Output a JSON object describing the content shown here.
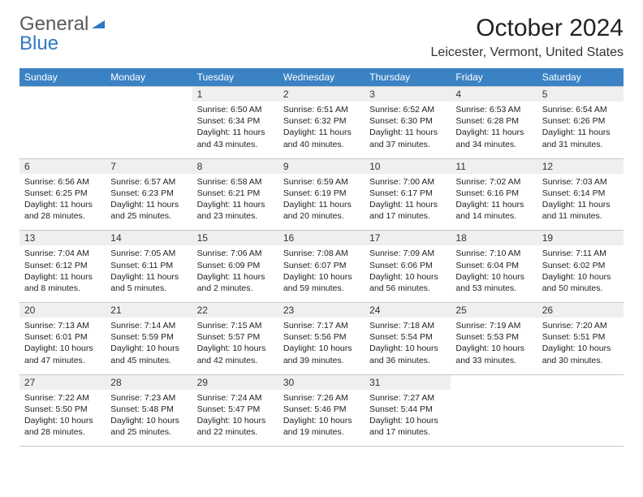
{
  "logo": {
    "part1": "General",
    "part2": "Blue"
  },
  "title": "October 2024",
  "location": "Leicester, Vermont, United States",
  "colors": {
    "header_bg": "#3a82c4",
    "header_fg": "#ffffff",
    "daynum_bg": "#efefef",
    "border": "#c8c8c8",
    "logo_blue": "#2e78c2",
    "logo_gray": "#5a5a5a"
  },
  "daysOfWeek": [
    "Sunday",
    "Monday",
    "Tuesday",
    "Wednesday",
    "Thursday",
    "Friday",
    "Saturday"
  ],
  "weeks": [
    [
      null,
      null,
      {
        "n": "1",
        "sr": "Sunrise: 6:50 AM",
        "ss": "Sunset: 6:34 PM",
        "dl": "Daylight: 11 hours and 43 minutes."
      },
      {
        "n": "2",
        "sr": "Sunrise: 6:51 AM",
        "ss": "Sunset: 6:32 PM",
        "dl": "Daylight: 11 hours and 40 minutes."
      },
      {
        "n": "3",
        "sr": "Sunrise: 6:52 AM",
        "ss": "Sunset: 6:30 PM",
        "dl": "Daylight: 11 hours and 37 minutes."
      },
      {
        "n": "4",
        "sr": "Sunrise: 6:53 AM",
        "ss": "Sunset: 6:28 PM",
        "dl": "Daylight: 11 hours and 34 minutes."
      },
      {
        "n": "5",
        "sr": "Sunrise: 6:54 AM",
        "ss": "Sunset: 6:26 PM",
        "dl": "Daylight: 11 hours and 31 minutes."
      }
    ],
    [
      {
        "n": "6",
        "sr": "Sunrise: 6:56 AM",
        "ss": "Sunset: 6:25 PM",
        "dl": "Daylight: 11 hours and 28 minutes."
      },
      {
        "n": "7",
        "sr": "Sunrise: 6:57 AM",
        "ss": "Sunset: 6:23 PM",
        "dl": "Daylight: 11 hours and 25 minutes."
      },
      {
        "n": "8",
        "sr": "Sunrise: 6:58 AM",
        "ss": "Sunset: 6:21 PM",
        "dl": "Daylight: 11 hours and 23 minutes."
      },
      {
        "n": "9",
        "sr": "Sunrise: 6:59 AM",
        "ss": "Sunset: 6:19 PM",
        "dl": "Daylight: 11 hours and 20 minutes."
      },
      {
        "n": "10",
        "sr": "Sunrise: 7:00 AM",
        "ss": "Sunset: 6:17 PM",
        "dl": "Daylight: 11 hours and 17 minutes."
      },
      {
        "n": "11",
        "sr": "Sunrise: 7:02 AM",
        "ss": "Sunset: 6:16 PM",
        "dl": "Daylight: 11 hours and 14 minutes."
      },
      {
        "n": "12",
        "sr": "Sunrise: 7:03 AM",
        "ss": "Sunset: 6:14 PM",
        "dl": "Daylight: 11 hours and 11 minutes."
      }
    ],
    [
      {
        "n": "13",
        "sr": "Sunrise: 7:04 AM",
        "ss": "Sunset: 6:12 PM",
        "dl": "Daylight: 11 hours and 8 minutes."
      },
      {
        "n": "14",
        "sr": "Sunrise: 7:05 AM",
        "ss": "Sunset: 6:11 PM",
        "dl": "Daylight: 11 hours and 5 minutes."
      },
      {
        "n": "15",
        "sr": "Sunrise: 7:06 AM",
        "ss": "Sunset: 6:09 PM",
        "dl": "Daylight: 11 hours and 2 minutes."
      },
      {
        "n": "16",
        "sr": "Sunrise: 7:08 AM",
        "ss": "Sunset: 6:07 PM",
        "dl": "Daylight: 10 hours and 59 minutes."
      },
      {
        "n": "17",
        "sr": "Sunrise: 7:09 AM",
        "ss": "Sunset: 6:06 PM",
        "dl": "Daylight: 10 hours and 56 minutes."
      },
      {
        "n": "18",
        "sr": "Sunrise: 7:10 AM",
        "ss": "Sunset: 6:04 PM",
        "dl": "Daylight: 10 hours and 53 minutes."
      },
      {
        "n": "19",
        "sr": "Sunrise: 7:11 AM",
        "ss": "Sunset: 6:02 PM",
        "dl": "Daylight: 10 hours and 50 minutes."
      }
    ],
    [
      {
        "n": "20",
        "sr": "Sunrise: 7:13 AM",
        "ss": "Sunset: 6:01 PM",
        "dl": "Daylight: 10 hours and 47 minutes."
      },
      {
        "n": "21",
        "sr": "Sunrise: 7:14 AM",
        "ss": "Sunset: 5:59 PM",
        "dl": "Daylight: 10 hours and 45 minutes."
      },
      {
        "n": "22",
        "sr": "Sunrise: 7:15 AM",
        "ss": "Sunset: 5:57 PM",
        "dl": "Daylight: 10 hours and 42 minutes."
      },
      {
        "n": "23",
        "sr": "Sunrise: 7:17 AM",
        "ss": "Sunset: 5:56 PM",
        "dl": "Daylight: 10 hours and 39 minutes."
      },
      {
        "n": "24",
        "sr": "Sunrise: 7:18 AM",
        "ss": "Sunset: 5:54 PM",
        "dl": "Daylight: 10 hours and 36 minutes."
      },
      {
        "n": "25",
        "sr": "Sunrise: 7:19 AM",
        "ss": "Sunset: 5:53 PM",
        "dl": "Daylight: 10 hours and 33 minutes."
      },
      {
        "n": "26",
        "sr": "Sunrise: 7:20 AM",
        "ss": "Sunset: 5:51 PM",
        "dl": "Daylight: 10 hours and 30 minutes."
      }
    ],
    [
      {
        "n": "27",
        "sr": "Sunrise: 7:22 AM",
        "ss": "Sunset: 5:50 PM",
        "dl": "Daylight: 10 hours and 28 minutes."
      },
      {
        "n": "28",
        "sr": "Sunrise: 7:23 AM",
        "ss": "Sunset: 5:48 PM",
        "dl": "Daylight: 10 hours and 25 minutes."
      },
      {
        "n": "29",
        "sr": "Sunrise: 7:24 AM",
        "ss": "Sunset: 5:47 PM",
        "dl": "Daylight: 10 hours and 22 minutes."
      },
      {
        "n": "30",
        "sr": "Sunrise: 7:26 AM",
        "ss": "Sunset: 5:46 PM",
        "dl": "Daylight: 10 hours and 19 minutes."
      },
      {
        "n": "31",
        "sr": "Sunrise: 7:27 AM",
        "ss": "Sunset: 5:44 PM",
        "dl": "Daylight: 10 hours and 17 minutes."
      },
      null,
      null
    ]
  ]
}
